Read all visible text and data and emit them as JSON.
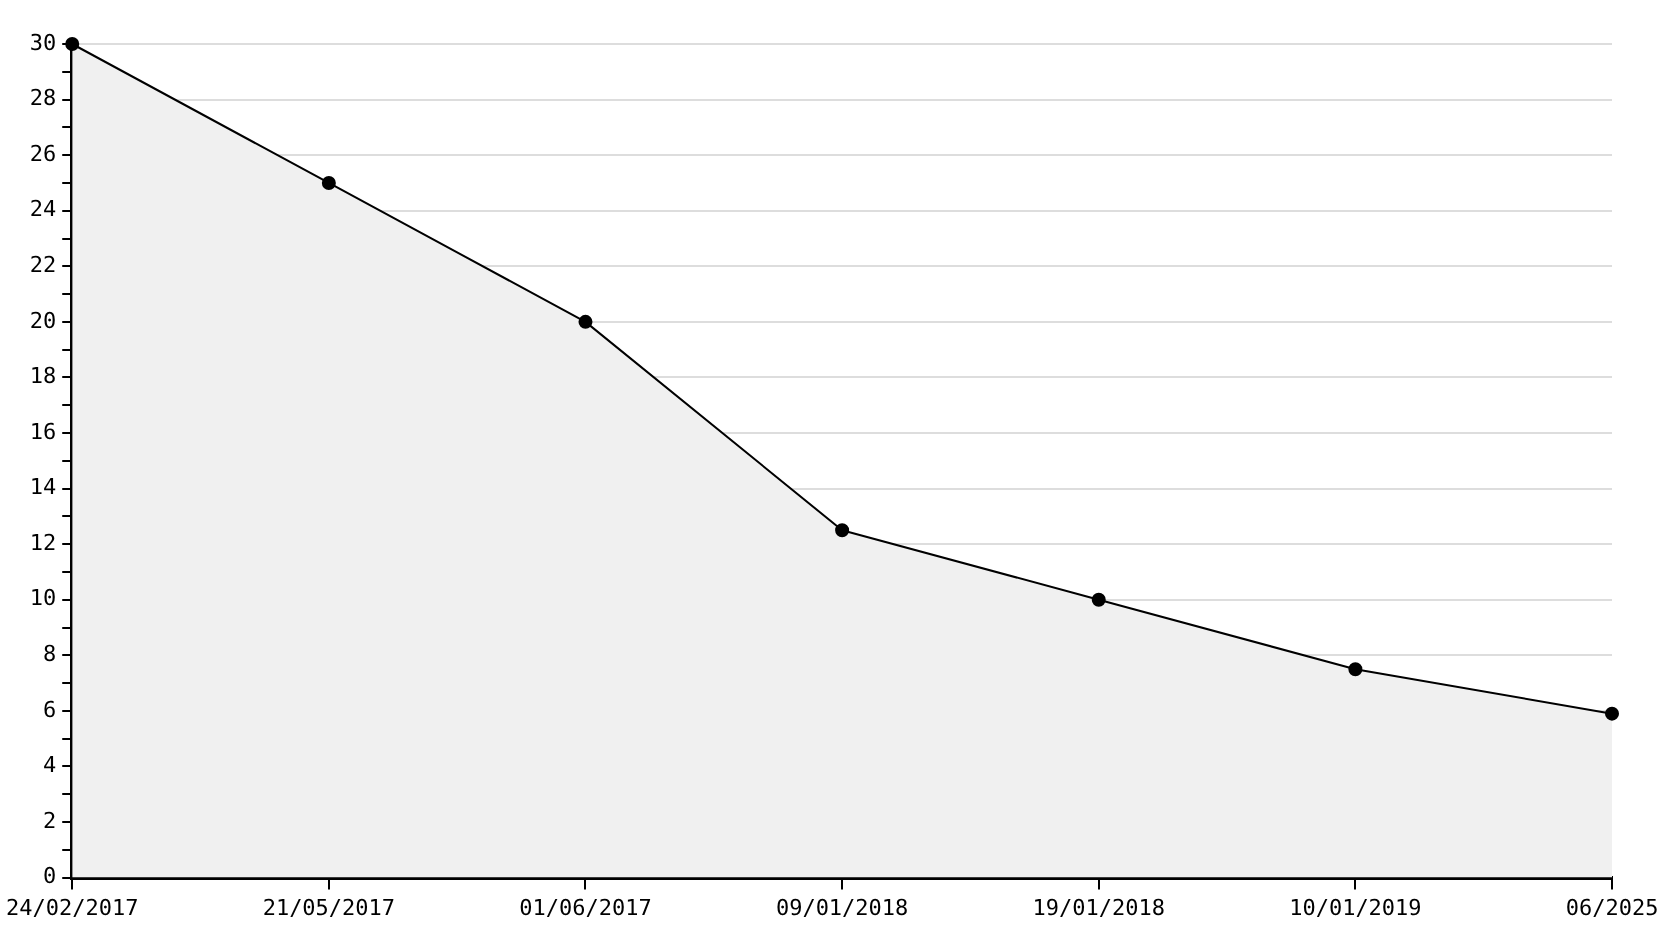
{
  "chart_data": {
    "type": "area",
    "categories": [
      "24/02/2017",
      "21/05/2017",
      "01/06/2017",
      "09/01/2018",
      "19/01/2018",
      "10/01/2019",
      "06/2025"
    ],
    "series": [
      {
        "color": "#000000",
        "values": [
          30,
          25,
          20,
          12.5,
          10,
          7.5,
          5.9
        ]
      }
    ],
    "ylim": [
      0,
      30
    ],
    "yticks": [
      0,
      {
        "value": 1,
        "label": null
      },
      2,
      {
        "value": 3,
        "label": null
      },
      4,
      {
        "value": 5,
        "label": null
      },
      6,
      {
        "value": 7,
        "label": null
      },
      8,
      {
        "value": 9,
        "label": null
      },
      10,
      {
        "value": 11,
        "label": null
      },
      12,
      {
        "value": 13,
        "label": null
      },
      14,
      {
        "value": 15,
        "label": null
      },
      16,
      {
        "value": 17,
        "label": null
      },
      18,
      {
        "value": 19,
        "label": null
      },
      20,
      {
        "value": 21,
        "label": null
      },
      22,
      {
        "value": 23,
        "label": null
      },
      24,
      {
        "value": 25,
        "label": null
      },
      26,
      {
        "value": 27,
        "label": null
      },
      28,
      {
        "value": 29,
        "label": null
      },
      30
    ],
    "grid": "y",
    "legend": false,
    "marker": "circle",
    "line_style": "solid"
  }
}
